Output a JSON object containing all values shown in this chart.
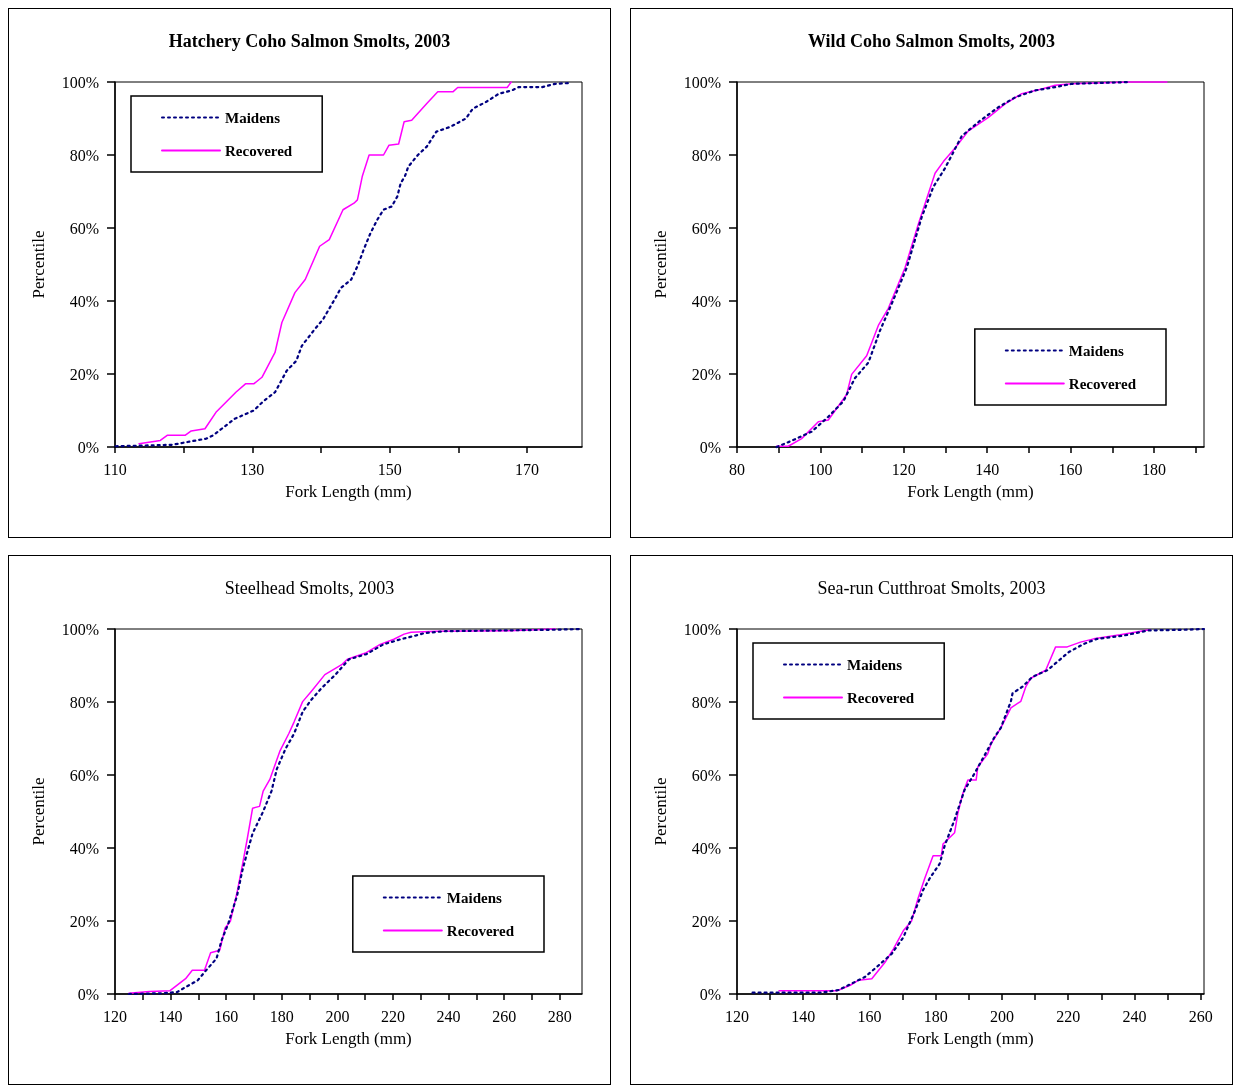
{
  "chart_data": [
    {
      "type": "line",
      "title": "Hatchery Coho Salmon Smolts, 2003",
      "xlabel": "Fork Length (mm)",
      "ylabel": "Percentile",
      "xlim": [
        110,
        178
      ],
      "xticks": [
        110,
        {
          "value": 120,
          "label": null
        },
        130,
        {
          "value": 140,
          "label": null
        },
        150,
        {
          "value": 160,
          "label": null
        },
        170
      ],
      "ylim": [
        0,
        100
      ],
      "yticks": [
        {
          "value": 0,
          "label": "0%"
        },
        {
          "value": 20,
          "label": "20%"
        },
        {
          "value": 40,
          "label": "40%"
        },
        {
          "value": 60,
          "label": "60%"
        },
        {
          "value": 80,
          "label": "80%"
        },
        {
          "value": 100,
          "label": "100%"
        }
      ],
      "grid": false,
      "legend": "top left",
      "marker": "none",
      "series": [
        {
          "name": "Maidens",
          "color": "#000080",
          "line_style": "dotted",
          "x": [
            110.1,
            118.3,
            123.3,
            124.3,
            127.4,
            130.2,
            131.7,
            133.3,
            135.0,
            136.4,
            137.2,
            139.1,
            140.3,
            142.0,
            142.9,
            144.4,
            145.3,
            146.3,
            147.2,
            148.2,
            149.1,
            150.3,
            151.1,
            151.6,
            152.2,
            152.7,
            154.1,
            155.4,
            156.8,
            158.8,
            161.1,
            162.1,
            164.0,
            165.9,
            167.8,
            168.8,
            172.2,
            174.1,
            176.0
          ],
          "values": [
            0.2,
            0.6,
            2.3,
            3.2,
            7.7,
            10,
            12.7,
            15,
            20.9,
            23.6,
            27.7,
            32.3,
            35,
            40.5,
            43.6,
            45.9,
            49.5,
            54.5,
            58.6,
            62.3,
            65,
            65.9,
            68.6,
            72.3,
            74.1,
            76.8,
            80,
            82.3,
            86.4,
            87.7,
            90,
            92.7,
            94.5,
            96.8,
            97.7,
            98.6,
            98.6,
            99.5,
            99.7
          ]
        },
        {
          "name": "Recovered",
          "color": "#ff00ff",
          "line_style": "solid",
          "x": [
            113.5,
            116.6,
            117.6,
            120.2,
            121.1,
            123.1,
            124.7,
            127.6,
            129.0,
            130.2,
            131.4,
            133.3,
            134.3,
            136.2,
            137.7,
            139.8,
            141.2,
            143.2,
            144.8,
            145.3,
            146.0,
            147.0,
            149.1,
            149.9,
            151.3,
            152.1,
            153.2,
            155.4,
            157.0,
            159.2,
            159.9,
            167.1,
            167.7
          ],
          "values": [
            0.9,
            1.8,
            3.2,
            3.2,
            4.4,
            5,
            9.5,
            15,
            17.3,
            17.3,
            19.1,
            25.9,
            34.1,
            42.3,
            45.9,
            55,
            56.8,
            65,
            66.8,
            67.7,
            74.1,
            80,
            80,
            82.7,
            83,
            89.1,
            89.5,
            94.1,
            97.3,
            97.3,
            98.5,
            98.5,
            100
          ]
        }
      ]
    },
    {
      "type": "line",
      "title": "Wild Coho Salmon Smolts, 2003",
      "xlabel": "Fork Length (mm)",
      "ylabel": "Percentile",
      "xlim": [
        80,
        192
      ],
      "xticks": [
        80,
        {
          "value": 90,
          "label": null
        },
        100,
        {
          "value": 110,
          "label": null
        },
        120,
        {
          "value": 130,
          "label": null
        },
        140,
        {
          "value": 150,
          "label": null
        },
        160,
        {
          "value": 170,
          "label": null
        },
        180,
        {
          "value": 190,
          "label": null
        }
      ],
      "ylim": [
        0,
        100
      ],
      "yticks": [
        {
          "value": 0,
          "label": "0%"
        },
        {
          "value": 20,
          "label": "20%"
        },
        {
          "value": 40,
          "label": "40%"
        },
        {
          "value": 60,
          "label": "60%"
        },
        {
          "value": 80,
          "label": "80%"
        },
        {
          "value": 100,
          "label": "100%"
        }
      ],
      "grid": false,
      "legend": "bottom right",
      "marker": "none",
      "series": [
        {
          "name": "Maidens",
          "color": "#000080",
          "line_style": "dotted",
          "x": [
            89.5,
            93.5,
            97.9,
            101.9,
            105.5,
            108.3,
            111.5,
            114.3,
            117.5,
            120.7,
            124.3,
            127.1,
            129.9,
            133.9,
            138.3,
            142.7,
            146.7,
            151.5,
            156.3,
            160.3,
            174.3
          ],
          "values": [
            0,
            1.9,
            4.2,
            8.3,
            12.5,
            18.9,
            23.1,
            31.9,
            40.3,
            49.1,
            63,
            71.3,
            76.4,
            85.2,
            89.4,
            93.1,
            95.8,
            97.7,
            98.6,
            99.5,
            100
          ]
        },
        {
          "name": "Recovered",
          "color": "#ff00ff",
          "line_style": "solid",
          "x": [
            89.5,
            92.3,
            95.5,
            99.5,
            101.9,
            106.3,
            107.5,
            111.1,
            113.9,
            116.3,
            120.3,
            123.5,
            127.5,
            129.5,
            132.3,
            135.5,
            140.3,
            144.3,
            148.3,
            153.1,
            156.3,
            160.3,
            174.7,
            183.1
          ],
          "values": [
            0.2,
            0.2,
            2.3,
            6.9,
            7.4,
            14.4,
            19.9,
            25,
            33.3,
            38,
            49.1,
            61.1,
            75,
            78.2,
            81.9,
            86.6,
            90.3,
            94,
            96.8,
            98.1,
            99.1,
            99.5,
            100,
            100
          ]
        }
      ]
    },
    {
      "type": "line",
      "title": "Steelhead Smolts, 2003",
      "xlabel": "Fork Length (mm)",
      "ylabel": "Percentile",
      "xlim": [
        120,
        288
      ],
      "xticks": [
        120,
        {
          "value": 130,
          "label": null
        },
        140,
        {
          "value": 150,
          "label": null
        },
        160,
        {
          "value": 170,
          "label": null
        },
        180,
        {
          "value": 190,
          "label": null
        },
        200,
        {
          "value": 210,
          "label": null
        },
        220,
        {
          "value": 230,
          "label": null
        },
        240,
        {
          "value": 250,
          "label": null
        },
        260,
        {
          "value": 270,
          "label": null
        },
        280
      ],
      "ylim": [
        0,
        100
      ],
      "yticks": [
        {
          "value": 0,
          "label": "0%"
        },
        {
          "value": 20,
          "label": "20%"
        },
        {
          "value": 40,
          "label": "40%"
        },
        {
          "value": 60,
          "label": "60%"
        },
        {
          "value": 80,
          "label": "80%"
        },
        {
          "value": 100,
          "label": "100%"
        }
      ],
      "grid": false,
      "legend": "bottom right",
      "marker": "none",
      "series": [
        {
          "name": "Maidens",
          "color": "#000080",
          "line_style": "dotted",
          "x": [
            125,
            136.7,
            142.3,
            145.4,
            149.7,
            152.8,
            156.5,
            158.4,
            160.8,
            163.9,
            165.8,
            167.6,
            169.5,
            173.3,
            176.3,
            178.2,
            181.3,
            184.4,
            187.5,
            190.6,
            194.3,
            199.3,
            204.2,
            210.4,
            216.6,
            222.8,
            227.7,
            231.4,
            238.8,
            278.4,
            287.7
          ],
          "values": [
            0,
            0.2,
            0.5,
            1.9,
            3.7,
            6.5,
            9.7,
            14.8,
            19.4,
            26.9,
            33.8,
            38.9,
            44,
            50,
            55.6,
            61.6,
            67.1,
            71.3,
            77.3,
            80.6,
            83.8,
            87.5,
            91.7,
            93.1,
            95.8,
            97.2,
            98.1,
            98.9,
            99.4,
            99.8,
            100
          ]
        },
        {
          "name": "Recovered",
          "color": "#ff00ff",
          "line_style": "solid",
          "x": [
            125,
            132.4,
            139.8,
            145.4,
            147.8,
            152.2,
            154.4,
            157.7,
            159.6,
            161.5,
            163.9,
            165.8,
            167.6,
            169.5,
            172,
            173.3,
            175.7,
            179.4,
            182.5,
            184.4,
            187.5,
            190.6,
            195.5,
            201.7,
            203.6,
            210.4,
            215.4,
            220.3,
            224,
            226.5,
            235.8,
            262.3,
            278.4
          ],
          "values": [
            0.2,
            0.7,
            0.9,
            4.2,
            6.5,
            6.5,
            11.3,
            12,
            18.1,
            19.9,
            27.8,
            35.2,
            42.6,
            50.9,
            51.4,
            55.6,
            58.8,
            66.7,
            71.3,
            74.5,
            80.1,
            82.9,
            87.5,
            90.3,
            91.7,
            93.5,
            95.8,
            97.2,
            98.6,
            99.1,
            99.4,
            99.5,
            100
          ]
        }
      ]
    },
    {
      "type": "line",
      "title": "Sea-run Cutthroat Smolts, 2003",
      "xlabel": "Fork Length (mm)",
      "ylabel": "Percentile",
      "xlim": [
        120,
        261
      ],
      "xticks": [
        120,
        {
          "value": 130,
          "label": null
        },
        140,
        {
          "value": 150,
          "label": null
        },
        160,
        {
          "value": 170,
          "label": null
        },
        180,
        {
          "value": 190,
          "label": null
        },
        200,
        {
          "value": 210,
          "label": null
        },
        220,
        {
          "value": 230,
          "label": null
        },
        240,
        {
          "value": 250,
          "label": null
        },
        260
      ],
      "ylim": [
        0,
        100
      ],
      "yticks": [
        {
          "value": 0,
          "label": "0%"
        },
        {
          "value": 20,
          "label": "20%"
        },
        {
          "value": 40,
          "label": "40%"
        },
        {
          "value": 60,
          "label": "60%"
        },
        {
          "value": 80,
          "label": "80%"
        },
        {
          "value": 100,
          "label": "100%"
        }
      ],
      "grid": false,
      "legend": "top left",
      "marker": "none",
      "series": [
        {
          "name": "Maidens",
          "color": "#000080",
          "line_style": "dotted",
          "x": [
            124.7,
            145.7,
            150.7,
            154.7,
            158.7,
            162.7,
            166.7,
            170.2,
            173.7,
            176.2,
            178.2,
            181.2,
            182.7,
            185.7,
            188.7,
            191.7,
            194.7,
            197.7,
            199.7,
            202.7,
            203.2,
            206.2,
            209.2,
            213.7,
            216.7,
            220.2,
            224.7,
            228.7,
            236.7,
            244.2,
            255.7,
            261
          ],
          "values": [
            0.4,
            0.4,
            1.1,
            2.9,
            4.7,
            7.8,
            11,
            15.5,
            22.7,
            28.5,
            31.7,
            35.7,
            40.6,
            47.8,
            55.9,
            60.4,
            65.3,
            70.3,
            73,
            80.2,
            82.4,
            84.2,
            86.9,
            88.7,
            91,
            93.7,
            95.9,
            97.3,
            98.2,
            99.6,
            99.8,
            100
          ]
        },
        {
          "name": "Recovered",
          "color": "#ff00ff",
          "line_style": "solid",
          "x": [
            132.7,
            150.2,
            154.2,
            156.7,
            160.7,
            164.7,
            167.2,
            170.2,
            172.7,
            174.7,
            176.7,
            179.2,
            181.7,
            182.2,
            185.7,
            186.7,
            188.2,
            189.7,
            192.2,
            192.7,
            195.7,
            196.7,
            199.7,
            202.7,
            205.7,
            207.2,
            208.7,
            213.2,
            216.2,
            219.7,
            223.7,
            227.7,
            235.7,
            243.2,
            244.7
          ],
          "values": [
            0.9,
            0.9,
            2.4,
            3.8,
            4.2,
            8.7,
            12.3,
            17.3,
            20,
            26.3,
            31.7,
            37.9,
            37.9,
            41.1,
            44.2,
            49.6,
            55,
            58.6,
            58.6,
            62.2,
            65.8,
            68.5,
            73,
            78.4,
            80.2,
            84.2,
            86.5,
            88.7,
            95.1,
            95.1,
            96.4,
            97.3,
            98.4,
            99.6,
            99.8
          ]
        }
      ]
    }
  ]
}
